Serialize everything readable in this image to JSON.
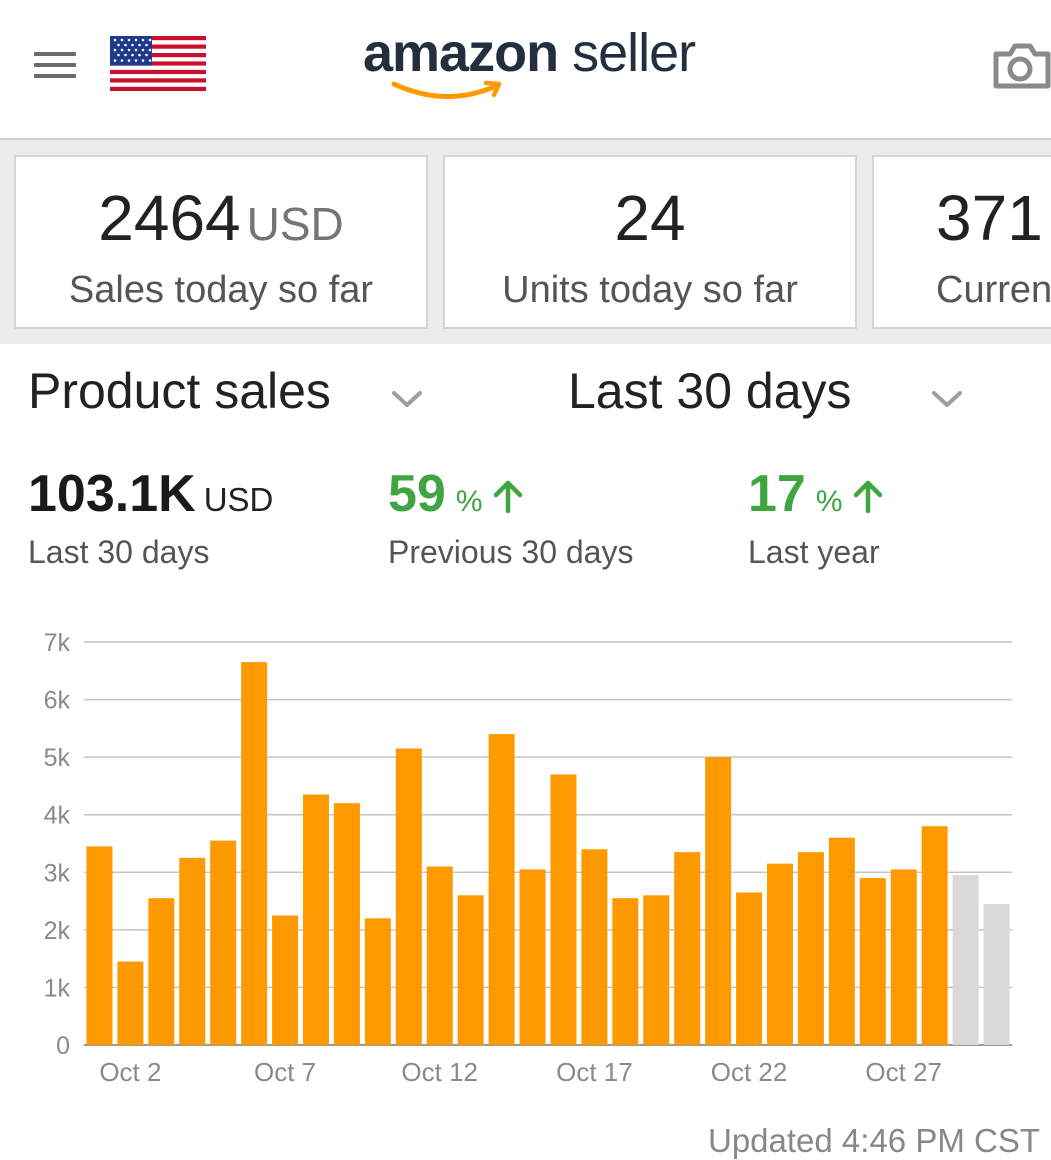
{
  "header": {
    "menu_icon": "hamburger-menu-icon",
    "flag_icon": "us-flag-icon",
    "logo_brand": "amazon",
    "logo_suffix": "seller",
    "camera_icon": "camera-icon"
  },
  "cards": [
    {
      "value": "2464",
      "unit": "USD",
      "label": "Sales today so far"
    },
    {
      "value": "24",
      "unit": "",
      "label": "Units today so far"
    },
    {
      "value": "371",
      "unit": "",
      "label": "Curren"
    }
  ],
  "selectors": {
    "metric": "Product sales",
    "range": "Last 30 days"
  },
  "metrics": {
    "total_value": "103.1K",
    "total_unit": "USD",
    "total_label": "Last 30 days",
    "prev_change": "59",
    "prev_unit": "%",
    "prev_label": "Previous 30 days",
    "year_change": "17",
    "year_unit": "%",
    "year_label": "Last year"
  },
  "colors": {
    "bar": "#ff9900",
    "bar_projected": "#d9d9d9",
    "positive": "#3ea541",
    "brand_dark": "#232f3e"
  },
  "chart_data": {
    "type": "bar",
    "categories": [
      "Oct 1",
      "Oct 2",
      "Oct 3",
      "Oct 4",
      "Oct 5",
      "Oct 6",
      "Oct 7",
      "Oct 8",
      "Oct 9",
      "Oct 10",
      "Oct 11",
      "Oct 12",
      "Oct 13",
      "Oct 14",
      "Oct 15",
      "Oct 16",
      "Oct 17",
      "Oct 18",
      "Oct 19",
      "Oct 20",
      "Oct 21",
      "Oct 22",
      "Oct 23",
      "Oct 24",
      "Oct 25",
      "Oct 26",
      "Oct 27",
      "Oct 28",
      "Oct 29",
      "Oct 30"
    ],
    "x_tick_labels": [
      "Oct 2",
      "Oct 7",
      "Oct 12",
      "Oct 17",
      "Oct 22",
      "Oct 27"
    ],
    "y_tick_labels": [
      "0",
      "1k",
      "2k",
      "3k",
      "4k",
      "5k",
      "6k",
      "7k"
    ],
    "series": [
      {
        "values": [
          3450,
          1450,
          2550,
          3250,
          3550,
          6650,
          2250,
          4350,
          4200,
          2200,
          5150,
          3100,
          2600,
          5400,
          3050,
          4700,
          3400,
          2550,
          2600,
          3350,
          5000,
          2650,
          3150,
          3350,
          3600,
          2900,
          3050,
          3800,
          2950,
          2450
        ]
      }
    ],
    "projected_from_index": 28,
    "ylim": [
      0,
      7000
    ],
    "grid": true,
    "legend": "none"
  },
  "footer": {
    "updated": "Updated 4:46 PM CST"
  }
}
